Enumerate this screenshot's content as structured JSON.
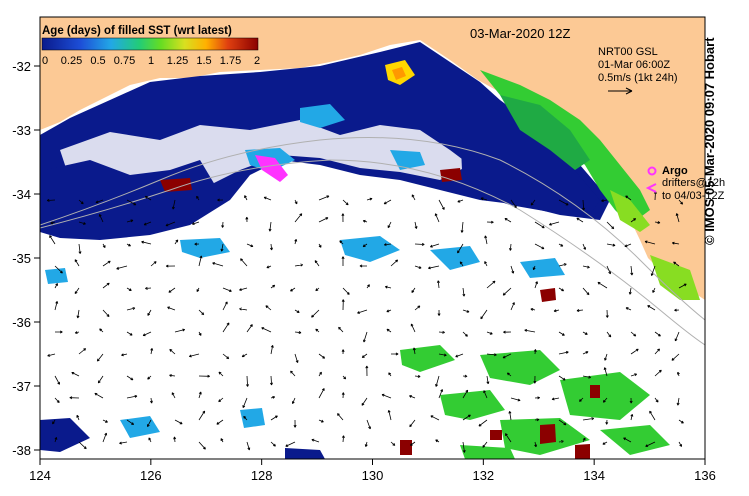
{
  "map": {
    "date_title": "03-Mar-2020 12Z",
    "colorbar": {
      "title": "Age (days) of filled SST (wrt latest)",
      "ticks": [
        "0",
        "0.25",
        "0.5",
        "0.75",
        "1",
        "1.25",
        "1.5",
        "1.75",
        "2"
      ]
    },
    "current_info": {
      "line1": "NRT00 GSL",
      "line2": "01-Mar 06:00Z",
      "line3": "0.5m/s (1kt 24h)"
    },
    "legend": {
      "argo": "Argo",
      "drifters_line1": "drifters@12h",
      "drifters_line2": "to 04/03-12Z"
    },
    "credit": "© IMOS 05-Mar-2020 09:07 Hobart",
    "lon_ticks": [
      "124",
      "126",
      "128",
      "130",
      "132",
      "134",
      "136"
    ],
    "lat_ticks": [
      "-32",
      "-33",
      "-34",
      "-35",
      "-36",
      "-37",
      "-38"
    ],
    "colors": {
      "land": "#FCC995",
      "ocean_missing": "#FFFFFF",
      "age_0": "#0A1A8C",
      "age_mid": "#22A8E6",
      "age_1": "#33CC33",
      "age_1_5": "#FFD700",
      "age_2": "#8B0000",
      "argo": "#FF33FF",
      "bathymetry": "#B0B0B0"
    }
  }
}
